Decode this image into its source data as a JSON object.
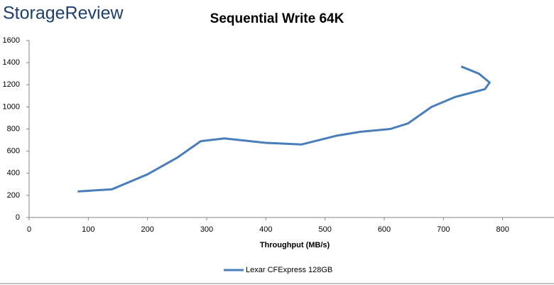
{
  "brand": "StorageReview",
  "chart_data": {
    "type": "line",
    "title": "Sequential Write 64K",
    "x_label": "Throughput (MB/s)",
    "x": [
      82,
      140,
      200,
      250,
      290,
      330,
      400,
      460,
      520,
      560,
      610,
      640,
      680,
      720,
      770,
      778,
      760,
      730
    ],
    "series": [
      {
        "name": "Lexar CFExpress 128GB",
        "color": "#4a7ebb",
        "values": [
          235,
          255,
          390,
          540,
          690,
          715,
          675,
          660,
          740,
          775,
          800,
          850,
          1000,
          1090,
          1160,
          1220,
          1300,
          1365
        ]
      }
    ],
    "xlim": [
      0,
      900
    ],
    "xticks": [
      0,
      100,
      200,
      300,
      400,
      500,
      600,
      700,
      800
    ],
    "ylim": [
      0,
      1600
    ],
    "yticks": [
      0,
      200,
      400,
      600,
      800,
      1000,
      1200,
      1400,
      1600
    ],
    "grid": false,
    "legend": "bottom"
  }
}
